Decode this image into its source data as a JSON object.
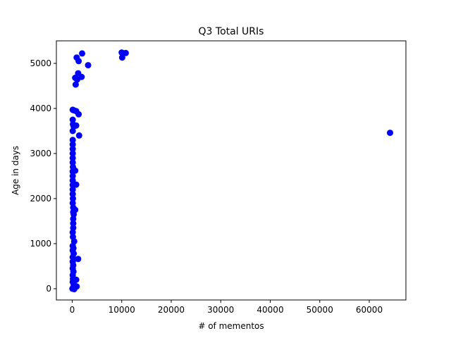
{
  "chart_data": {
    "type": "scatter",
    "title": "Q3 Total URIs",
    "xlabel": "# of mementos",
    "ylabel": "Age in days",
    "xlim": [
      -3200,
      67400
    ],
    "ylim": [
      -250,
      5500
    ],
    "xticks": [
      0,
      10000,
      20000,
      30000,
      40000,
      50000,
      60000
    ],
    "yticks": [
      0,
      1000,
      2000,
      3000,
      4000,
      5000
    ],
    "grid": false,
    "marker_color": "#0000ff",
    "series": [
      {
        "points": [
          [
            900,
            5130
          ],
          [
            2000,
            5220
          ],
          [
            1300,
            5050
          ],
          [
            3200,
            4960
          ],
          [
            10000,
            5240
          ],
          [
            10800,
            5230
          ],
          [
            10100,
            5130
          ],
          [
            600,
            4680
          ],
          [
            1200,
            4780
          ],
          [
            1900,
            4700
          ],
          [
            1000,
            4640
          ],
          [
            700,
            4530
          ],
          [
            100,
            3970
          ],
          [
            300,
            3960
          ],
          [
            800,
            3940
          ],
          [
            1300,
            3870
          ],
          [
            100,
            3750
          ],
          [
            150,
            3650
          ],
          [
            300,
            3600
          ],
          [
            800,
            3620
          ],
          [
            100,
            3500
          ],
          [
            1400,
            3400
          ],
          [
            100,
            3300
          ],
          [
            100,
            3200
          ],
          [
            100,
            3100
          ],
          [
            100,
            3000
          ],
          [
            100,
            2900
          ],
          [
            100,
            2800
          ],
          [
            150,
            2700
          ],
          [
            100,
            2600
          ],
          [
            600,
            2620
          ],
          [
            100,
            2500
          ],
          [
            100,
            2400
          ],
          [
            100,
            2300
          ],
          [
            800,
            2310
          ],
          [
            100,
            2200
          ],
          [
            100,
            2100
          ],
          [
            150,
            2000
          ],
          [
            100,
            1900
          ],
          [
            200,
            1800
          ],
          [
            600,
            1750
          ],
          [
            200,
            1700
          ],
          [
            300,
            1650
          ],
          [
            200,
            1550
          ],
          [
            200,
            1450
          ],
          [
            200,
            1350
          ],
          [
            100,
            1250
          ],
          [
            150,
            1150
          ],
          [
            400,
            1050
          ],
          [
            100,
            950
          ],
          [
            250,
            900
          ],
          [
            100,
            850
          ],
          [
            300,
            780
          ],
          [
            100,
            700
          ],
          [
            1200,
            660
          ],
          [
            100,
            600
          ],
          [
            200,
            520
          ],
          [
            100,
            450
          ],
          [
            250,
            380
          ],
          [
            100,
            300
          ],
          [
            150,
            220
          ],
          [
            800,
            200
          ],
          [
            100,
            150
          ],
          [
            300,
            100
          ],
          [
            600,
            60
          ],
          [
            900,
            50
          ],
          [
            200,
            30
          ],
          [
            100,
            10
          ],
          [
            50,
            0
          ],
          [
            400,
            -10
          ],
          [
            64200,
            3460
          ]
        ]
      }
    ]
  }
}
